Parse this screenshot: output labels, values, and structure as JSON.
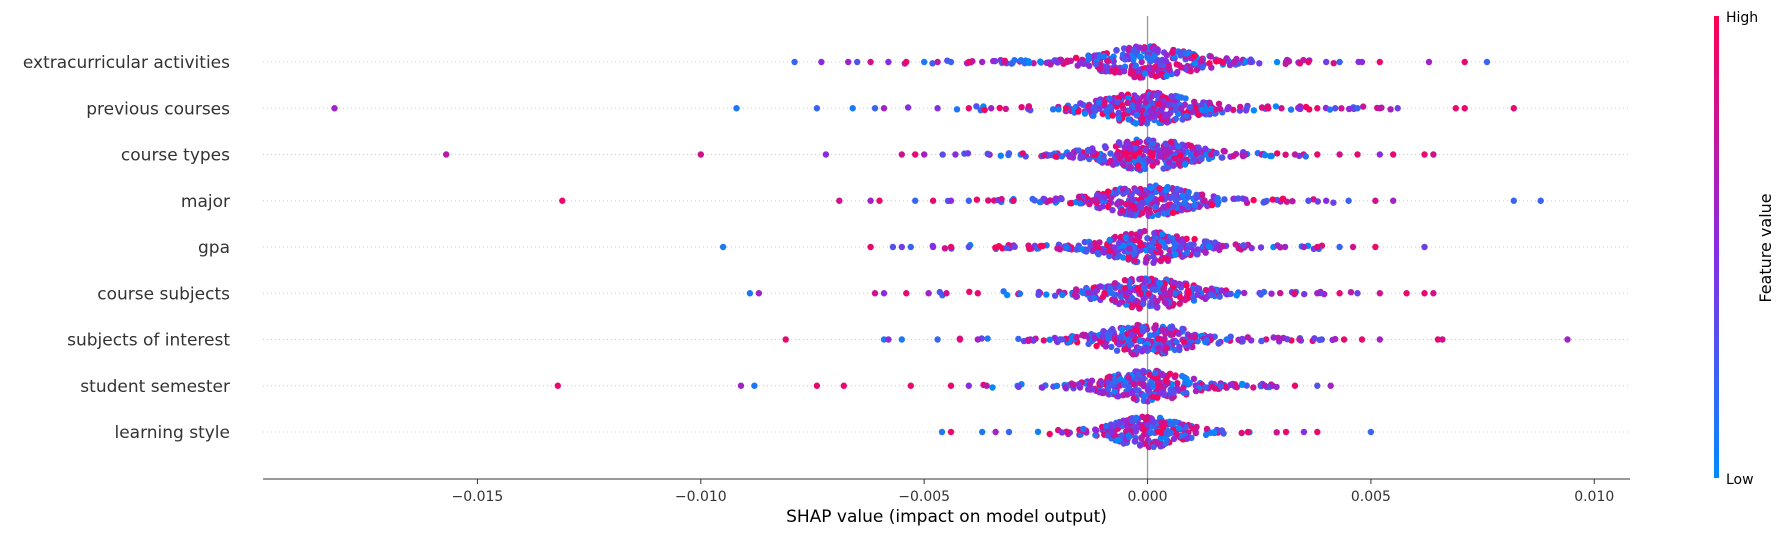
{
  "chart_data": {
    "type": "scatter",
    "subtype": "shap-beeswarm",
    "xlabel": "SHAP value (impact on model output)",
    "xlim": [
      -0.0198,
      0.0108
    ],
    "xticks": [
      -0.015,
      -0.01,
      -0.005,
      0.0,
      0.005,
      0.01
    ],
    "xtick_labels": [
      "−0.015",
      "−0.010",
      "−0.005",
      "0.000",
      "0.005",
      "0.010"
    ],
    "features": [
      "extracurricular activities",
      "previous courses",
      "course types",
      "major",
      "gpa",
      "course subjects",
      "subjects of interest",
      "student semester",
      "learning style"
    ],
    "feature_points": [
      {
        "feature": "extracurricular activities",
        "points": [
          [
            -0.0079,
            0.2
          ],
          [
            -0.0073,
            0.5
          ],
          [
            -0.0067,
            0.6
          ],
          [
            -0.0065,
            0.3
          ],
          [
            -0.0062,
            0.8
          ],
          [
            -0.0058,
            0.5
          ],
          [
            -0.0054,
            0.9
          ],
          [
            -0.005,
            0.1
          ],
          [
            -0.0047,
            0.7
          ],
          [
            -0.0044,
            0.2
          ],
          [
            -0.004,
            0.9
          ],
          [
            -0.0037,
            0.6
          ],
          [
            -0.0032,
            0.8
          ],
          [
            0.0031,
            0.7
          ],
          [
            0.0036,
            0.9
          ],
          [
            0.004,
            0.4
          ],
          [
            0.0043,
            0.2
          ],
          [
            0.0048,
            0.5
          ],
          [
            0.0052,
            0.9
          ],
          [
            0.0063,
            0.6
          ],
          [
            0.0071,
            0.9
          ],
          [
            0.0076,
            0.2
          ]
        ],
        "core": {
          "spread": 0.0021,
          "n": 340,
          "tail": 0.006
        }
      },
      {
        "feature": "previous courses",
        "points": [
          [
            -0.0182,
            0.6
          ],
          [
            -0.0092,
            0.1
          ],
          [
            -0.0074,
            0.2
          ],
          [
            -0.0066,
            0.1
          ],
          [
            -0.0061,
            0.2
          ],
          [
            -0.0059,
            0.6
          ],
          [
            -0.0047,
            0.5
          ],
          [
            -0.004,
            0.9
          ],
          [
            -0.0035,
            0.6
          ],
          [
            0.003,
            0.8
          ],
          [
            0.0038,
            0.9
          ],
          [
            0.0042,
            0.3
          ],
          [
            0.0047,
            0.2
          ],
          [
            0.0052,
            0.7
          ],
          [
            0.0056,
            0.4
          ],
          [
            0.0069,
            0.9
          ],
          [
            0.0071,
            0.9
          ],
          [
            0.0082,
            0.9
          ]
        ],
        "core": {
          "spread": 0.0021,
          "n": 340,
          "tail": 0.006
        }
      },
      {
        "feature": "course types",
        "points": [
          [
            -0.0157,
            0.7
          ],
          [
            -0.01,
            0.8
          ],
          [
            -0.0072,
            0.5
          ],
          [
            -0.0055,
            0.8
          ],
          [
            -0.0052,
            0.9
          ],
          [
            -0.005,
            0.6
          ],
          [
            -0.0043,
            0.5
          ],
          [
            0.0033,
            0.7
          ],
          [
            0.0038,
            0.9
          ],
          [
            0.0043,
            0.8
          ],
          [
            0.0047,
            0.9
          ],
          [
            0.0052,
            0.5
          ],
          [
            0.0055,
            0.9
          ],
          [
            0.0062,
            0.9
          ],
          [
            0.0064,
            0.8
          ]
        ],
        "core": {
          "spread": 0.0019,
          "n": 300,
          "tail": 0.005
        }
      },
      {
        "feature": "major",
        "points": [
          [
            -0.0131,
            0.9
          ],
          [
            -0.0069,
            0.8
          ],
          [
            -0.0062,
            0.6
          ],
          [
            -0.006,
            0.9
          ],
          [
            -0.0052,
            0.2
          ],
          [
            -0.0048,
            0.9
          ],
          [
            -0.0044,
            0.5
          ],
          [
            -0.004,
            0.2
          ],
          [
            -0.003,
            0.9
          ],
          [
            0.0036,
            0.3
          ],
          [
            0.004,
            0.5
          ],
          [
            0.0045,
            0.2
          ],
          [
            0.0051,
            0.8
          ],
          [
            0.0055,
            0.6
          ],
          [
            0.0082,
            0.2
          ],
          [
            0.0088,
            0.2
          ]
        ],
        "core": {
          "spread": 0.0019,
          "n": 300,
          "tail": 0.005
        }
      },
      {
        "feature": "gpa",
        "points": [
          [
            -0.0095,
            0.1
          ],
          [
            -0.0062,
            0.9
          ],
          [
            -0.0057,
            0.3
          ],
          [
            -0.0055,
            0.4
          ],
          [
            -0.0053,
            0.2
          ],
          [
            -0.0048,
            0.5
          ],
          [
            -0.0044,
            0.9
          ],
          [
            -0.004,
            0.3
          ],
          [
            0.0035,
            0.6
          ],
          [
            0.0038,
            0.9
          ],
          [
            0.0043,
            0.2
          ],
          [
            0.0046,
            0.8
          ],
          [
            0.0051,
            0.9
          ],
          [
            0.0062,
            0.4
          ]
        ],
        "core": {
          "spread": 0.0019,
          "n": 280,
          "tail": 0.005
        }
      },
      {
        "feature": "course subjects",
        "points": [
          [
            -0.0089,
            0.1
          ],
          [
            -0.0087,
            0.6
          ],
          [
            -0.0061,
            0.8
          ],
          [
            -0.0059,
            0.5
          ],
          [
            -0.0054,
            0.9
          ],
          [
            -0.0049,
            0.6
          ],
          [
            -0.0045,
            0.8
          ],
          [
            -0.0038,
            0.9
          ],
          [
            0.0033,
            0.9
          ],
          [
            0.0038,
            0.6
          ],
          [
            0.0043,
            0.9
          ],
          [
            0.0047,
            0.4
          ],
          [
            0.0052,
            0.8
          ],
          [
            0.0058,
            0.9
          ],
          [
            0.0062,
            0.9
          ],
          [
            0.0064,
            0.8
          ]
        ],
        "core": {
          "spread": 0.0019,
          "n": 280,
          "tail": 0.005
        }
      },
      {
        "feature": "subjects of interest",
        "points": [
          [
            -0.0081,
            0.9
          ],
          [
            -0.0059,
            0.1
          ],
          [
            -0.0058,
            0.5
          ],
          [
            -0.0055,
            0.1
          ],
          [
            -0.0047,
            0.2
          ],
          [
            -0.0042,
            0.9
          ],
          [
            -0.0038,
            0.6
          ],
          [
            0.0034,
            0.7
          ],
          [
            0.0039,
            0.3
          ],
          [
            0.0044,
            0.9
          ],
          [
            0.0048,
            0.9
          ],
          [
            0.0052,
            0.6
          ],
          [
            0.0065,
            0.9
          ],
          [
            0.0066,
            0.8
          ],
          [
            0.0094,
            0.6
          ]
        ],
        "core": {
          "spread": 0.0019,
          "n": 280,
          "tail": 0.005
        }
      },
      {
        "feature": "student semester",
        "points": [
          [
            -0.0132,
            0.9
          ],
          [
            -0.0091,
            0.6
          ],
          [
            -0.0088,
            0.1
          ],
          [
            -0.0074,
            0.9
          ],
          [
            -0.0068,
            0.9
          ],
          [
            -0.0053,
            0.9
          ],
          [
            -0.0044,
            0.9
          ],
          [
            -0.004,
            0.5
          ],
          [
            -0.0036,
            0.7
          ],
          [
            0.0028,
            0.6
          ],
          [
            0.0033,
            0.9
          ],
          [
            0.0038,
            0.3
          ],
          [
            0.0041,
            0.6
          ]
        ],
        "core": {
          "spread": 0.0017,
          "n": 260,
          "tail": 0.004
        }
      },
      {
        "feature": "learning style",
        "points": [
          [
            -0.0046,
            0.1
          ],
          [
            -0.0044,
            0.9
          ],
          [
            -0.0037,
            0.1
          ],
          [
            -0.0034,
            0.6
          ],
          [
            -0.0031,
            0.2
          ],
          [
            0.0031,
            0.9
          ],
          [
            0.0035,
            0.5
          ],
          [
            0.0038,
            0.9
          ],
          [
            0.005,
            0.2
          ]
        ],
        "core": {
          "spread": 0.0015,
          "n": 230,
          "tail": 0.003
        }
      }
    ],
    "colorbar": {
      "title": "Feature value",
      "high_label": "High",
      "low_label": "Low",
      "low_color": "#008bfb",
      "mid_color": "#8a2be2",
      "high_color": "#ff0052"
    },
    "grid": false,
    "legend": "right"
  }
}
